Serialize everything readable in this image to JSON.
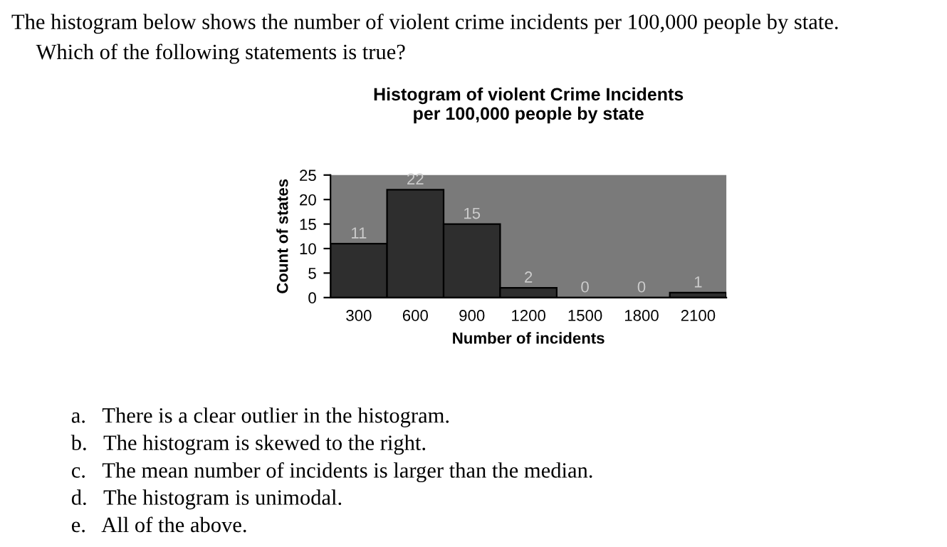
{
  "chart_data": {
    "type": "bar",
    "title": "Histogram of violent Crime Incidents\nper 100,000 people by state",
    "xlabel": "Number of incidents",
    "ylabel": "Count of states",
    "categories": [
      "300",
      "600",
      "900",
      "1200",
      "1500",
      "1800",
      "2100"
    ],
    "values": [
      11,
      22,
      15,
      2,
      0,
      0,
      1
    ],
    "color": "#2e2e2e",
    "ylim": [
      0,
      25
    ],
    "yticks": [
      0,
      5,
      10,
      15,
      20,
      25
    ],
    "grid": false,
    "data_labels": true,
    "legend": false,
    "annotations": [
      "The histogram below shows the number of violent crime incidents per 100,000 people by state.",
      "Which of the following statements is true?",
      "a.   There is a clear outlier in the histogram.",
      "b.   The histogram is skewed to the right.",
      "c.   The mean number of incidents is larger than the median.",
      "d.   The histogram is unimodal.",
      "e.   All of the above."
    ]
  }
}
